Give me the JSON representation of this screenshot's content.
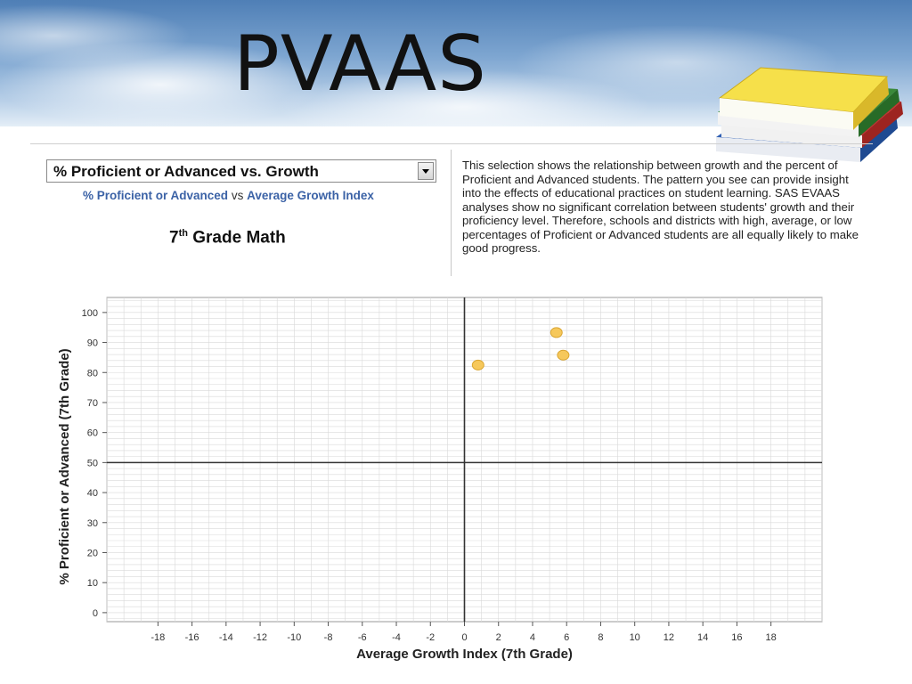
{
  "slide": {
    "title": "PVAAS"
  },
  "report": {
    "dropdown": {
      "selected": "% Proficient or Advanced vs. Growth"
    },
    "subtitle": {
      "part1": "% Proficient or Advanced",
      "connector": "vs",
      "part2": "Average Growth Index"
    },
    "grade": {
      "number": "7",
      "suffix": "th",
      "subject": "Grade Math"
    },
    "description": "This selection shows the relationship between growth and the percent of Proficient and Advanced students. The pattern you see can provide insight into the effects of educational practices on student learning. SAS EVAAS analyses show no significant correlation between students' growth and their proficiency level. Therefore, schools and districts with high, average, or low percentages of Proficient or Advanced students are all equally likely to make good progress."
  },
  "colors": {
    "point_fill": "#f6c85b",
    "point_stroke": "#d9a531",
    "grid": "#d9d9d9",
    "axis_ref": "#333333"
  },
  "chart_data": {
    "type": "scatter",
    "title": "",
    "xlabel": "Average Growth Index (7th Grade)",
    "ylabel": "% Proficient or Advanced (7th Grade)",
    "xlim": [
      -21,
      21
    ],
    "ylim": [
      -3,
      105
    ],
    "xticks": [
      -18,
      -16,
      -14,
      -12,
      -10,
      -8,
      -6,
      -4,
      -2,
      0,
      2,
      4,
      6,
      8,
      10,
      12,
      14,
      16,
      18
    ],
    "yticks": [
      0,
      10,
      20,
      30,
      40,
      50,
      60,
      70,
      80,
      90,
      100
    ],
    "reference_lines": {
      "x": 0,
      "y": 50
    },
    "grid": true,
    "points": [
      {
        "x": 0.8,
        "y": 82.5
      },
      {
        "x": 5.4,
        "y": 93.3
      },
      {
        "x": 5.8,
        "y": 85.8
      }
    ]
  }
}
